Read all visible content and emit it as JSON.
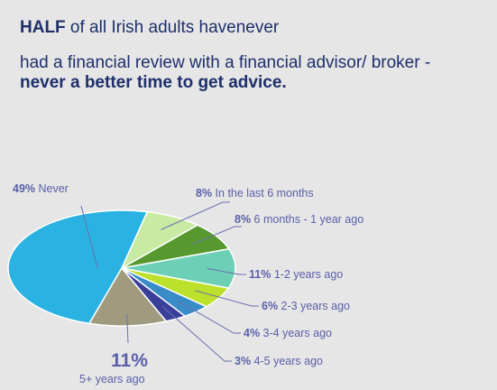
{
  "headline": {
    "line1_bold": "HALF",
    "line1_rest": " of all Irish adults havenever",
    "line2": "had a financial review with a financial advisor/ broker -",
    "line3_bold": "never a better time to get advice."
  },
  "chart_data": {
    "type": "pie",
    "title": "",
    "slices": [
      {
        "pct": "49%",
        "value": 49,
        "label": "Never",
        "color": "#2ab3e2"
      },
      {
        "pct": "8%",
        "value": 8,
        "label": "In the last 6 months",
        "color": "#c8eaa2"
      },
      {
        "pct": "8%",
        "value": 8,
        "label": "6 months - 1 year ago",
        "color": "#57992f"
      },
      {
        "pct": "11%",
        "value": 11,
        "label": "1-2 years ago",
        "color": "#6ccfb6"
      },
      {
        "pct": "6%",
        "value": 6,
        "label": "2-3 years ago",
        "color": "#bde02a"
      },
      {
        "pct": "4%",
        "value": 4,
        "label": "3-4 years ago",
        "color": "#3a8cc8"
      },
      {
        "pct": "3%",
        "value": 3,
        "label": "4-5 years ago",
        "color": "#3a3f9a"
      },
      {
        "pct": "11%",
        "value": 11,
        "label": "5+ years ago",
        "color": "#a09b7f"
      }
    ]
  }
}
